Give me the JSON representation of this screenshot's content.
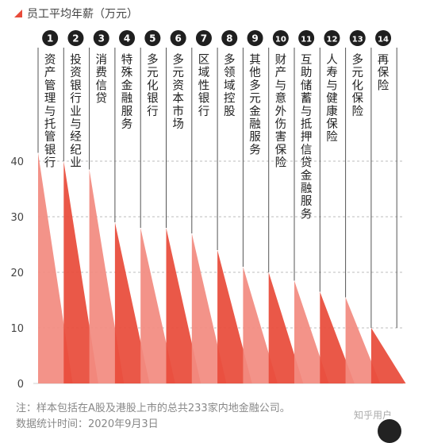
{
  "legend": {
    "label": "员工平均年薪（万元）",
    "color": "#e84b3a"
  },
  "chart_data": {
    "type": "bar",
    "title": "",
    "xlabel": "",
    "ylabel": "员工平均年薪（万元）",
    "ylim": [
      0,
      40
    ],
    "yticks": [
      "0",
      "10",
      "20",
      "30",
      "40"
    ],
    "grid": true,
    "categories": [
      {
        "rank": "1",
        "label": "资产管理与托管银行"
      },
      {
        "rank": "2",
        "label": "投资银行业与经纪业"
      },
      {
        "rank": "3",
        "label": "消费信贷"
      },
      {
        "rank": "4",
        "label": "特殊金融服务"
      },
      {
        "rank": "5",
        "label": "多元化银行"
      },
      {
        "rank": "6",
        "label": "多元资本市场"
      },
      {
        "rank": "7",
        "label": "区域性银行"
      },
      {
        "rank": "8",
        "label": "多领域控股"
      },
      {
        "rank": "9",
        "label": "其他多元金融服务"
      },
      {
        "rank": "10",
        "label": "财产与意外伤害保险"
      },
      {
        "rank": "11",
        "label": "互助储蓄与抵押信贷金融服务"
      },
      {
        "rank": "12",
        "label": "人寿与健康保险"
      },
      {
        "rank": "13",
        "label": "多元化保险"
      },
      {
        "rank": "14",
        "label": "再保险"
      }
    ],
    "values": [
      41.5,
      40,
      38.5,
      29,
      28,
      28,
      27,
      24,
      21,
      20,
      18.5,
      16.5,
      15.5,
      10
    ]
  },
  "notes": {
    "line1": "注：样本包括在A股及港股上市的总共233家内地金融公司。",
    "line2": "数据统计时间：2020年9月3日"
  },
  "credit": "知乎用户"
}
